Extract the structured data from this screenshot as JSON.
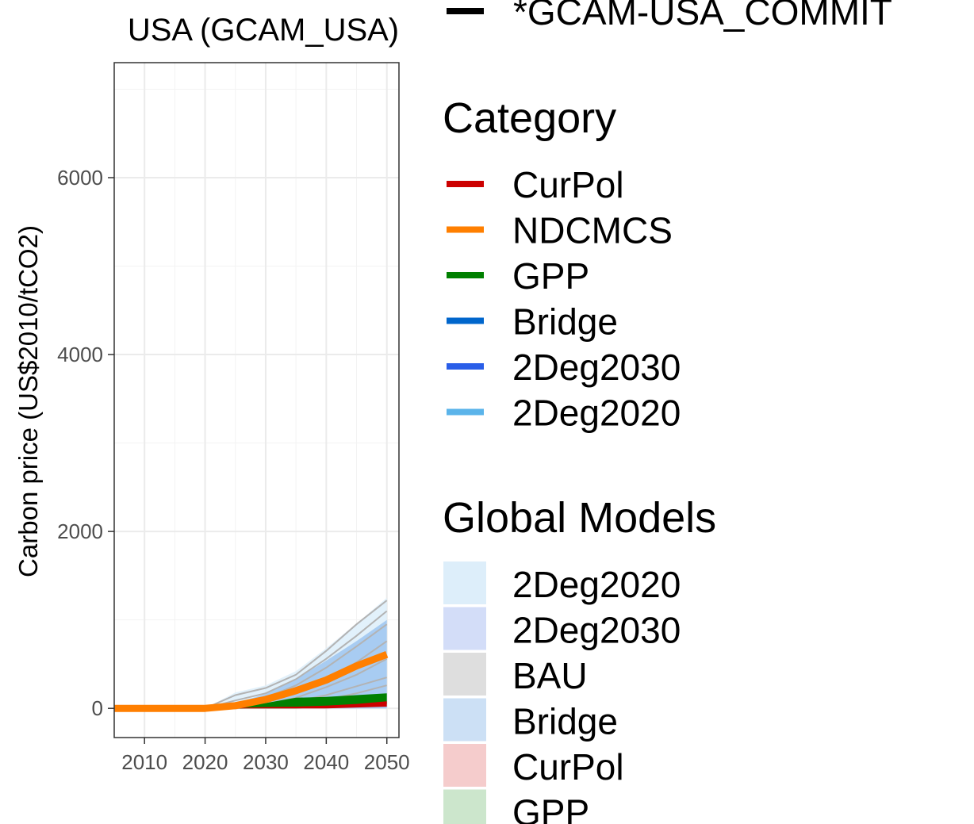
{
  "chart_data": {
    "type": "line",
    "title": "USA (GCAM_USA)",
    "ylabel": "Carbon price (US$2010/tCO2)",
    "xlabel": "",
    "xlim": [
      2005,
      2052
    ],
    "ylim": [
      -330,
      7300
    ],
    "x_ticks": [
      2010,
      2020,
      2030,
      2040,
      2050
    ],
    "y_ticks": [
      0,
      2000,
      4000,
      6000
    ],
    "x_tick_labels": [
      "2010",
      "2020",
      "2030",
      "2040",
      "2050"
    ],
    "y_tick_labels": [
      "0",
      "2000",
      "4000",
      "6000"
    ],
    "grid": true,
    "legend_position": "right",
    "model_series": {
      "label": "*GCAM-USA_COMMIT",
      "color": "#000000"
    },
    "category_legend": {
      "title": "Category",
      "items": [
        {
          "label": "CurPol",
          "color": "#cc0000"
        },
        {
          "label": "NDCMCS",
          "color": "#ff7f00"
        },
        {
          "label": "GPP",
          "color": "#008000"
        },
        {
          "label": "Bridge",
          "color": "#0066cc"
        },
        {
          "label": "2Deg2030",
          "color": "#2a5ee8"
        },
        {
          "label": "2Deg2020",
          "color": "#5bb4ea"
        }
      ]
    },
    "global_models_legend": {
      "title": "Global Models",
      "items": [
        {
          "label": "2Deg2020",
          "color": "#ddeefa"
        },
        {
          "label": "2Deg2030",
          "color": "#d3ddf8"
        },
        {
          "label": "BAU",
          "color": "#dedede"
        },
        {
          "label": "Bridge",
          "color": "#cce0f5"
        },
        {
          "label": "CurPol",
          "color": "#f5cccc"
        },
        {
          "label": "GPP",
          "color": "#cce6cc"
        }
      ]
    },
    "ranges": [
      {
        "category": "2Deg2020",
        "color": "#ddeefa",
        "x": [
          2020,
          2025,
          2030,
          2035,
          2040,
          2045,
          2050
        ],
        "low": [
          0,
          0,
          0,
          0,
          0,
          0,
          0
        ],
        "high": [
          0,
          180,
          260,
          420,
          680,
          960,
          1250
        ]
      },
      {
        "category": "Bridge",
        "color": "#9ec5f0",
        "x": [
          2020,
          2025,
          2030,
          2035,
          2040,
          2045,
          2050
        ],
        "low": [
          0,
          0,
          0,
          0,
          0,
          0,
          0
        ],
        "high": [
          0,
          60,
          160,
          330,
          540,
          760,
          1000
        ]
      }
    ],
    "model_runs": [
      {
        "x": [
          2020,
          2025,
          2030,
          2035,
          2040,
          2045,
          2050
        ],
        "values": [
          0,
          150,
          230,
          380,
          650,
          950,
          1220
        ]
      },
      {
        "x": [
          2020,
          2025,
          2030,
          2035,
          2040,
          2045,
          2050
        ],
        "values": [
          0,
          90,
          170,
          330,
          560,
          820,
          1100
        ]
      },
      {
        "x": [
          2020,
          2025,
          2030,
          2035,
          2040,
          2045,
          2050
        ],
        "values": [
          0,
          40,
          120,
          260,
          460,
          700,
          950
        ]
      },
      {
        "x": [
          2020,
          2025,
          2030,
          2035,
          2040,
          2045,
          2050
        ],
        "values": [
          0,
          20,
          80,
          180,
          330,
          520,
          760
        ]
      },
      {
        "x": [
          2020,
          2025,
          2030,
          2035,
          2040,
          2045,
          2050
        ],
        "values": [
          0,
          10,
          50,
          120,
          240,
          380,
          560
        ]
      },
      {
        "x": [
          2020,
          2025,
          2030,
          2035,
          2040,
          2045,
          2050
        ],
        "values": [
          0,
          5,
          30,
          80,
          150,
          250,
          350
        ]
      },
      {
        "x": [
          2020,
          2025,
          2030,
          2035,
          2040,
          2045,
          2050
        ],
        "values": [
          0,
          0,
          20,
          50,
          100,
          170,
          260
        ]
      }
    ],
    "series": [
      {
        "name": "GPP",
        "category": "GPP",
        "color": "#008000",
        "kind": "band",
        "x": [
          2020,
          2025,
          2030,
          2035,
          2040,
          2045,
          2050
        ],
        "low": [
          0,
          0,
          0,
          0,
          10,
          30,
          50
        ],
        "high": [
          0,
          20,
          60,
          120,
          130,
          150,
          170
        ]
      },
      {
        "name": "CurPol",
        "category": "CurPol",
        "color": "#cc0000",
        "kind": "band",
        "x": [
          2020,
          2025,
          2030,
          2035,
          2040,
          2045,
          2050
        ],
        "low": [
          0,
          0,
          0,
          0,
          0,
          10,
          20
        ],
        "high": [
          0,
          5,
          15,
          20,
          30,
          50,
          80
        ]
      },
      {
        "name": "NDCMCS",
        "category": "NDCMCS",
        "color": "#ff7f00",
        "kind": "line",
        "x": [
          2005,
          2010,
          2015,
          2020,
          2025,
          2030,
          2035,
          2040,
          2045,
          2050
        ],
        "values": [
          0,
          0,
          0,
          0,
          30,
          100,
          200,
          320,
          480,
          610
        ]
      }
    ]
  }
}
